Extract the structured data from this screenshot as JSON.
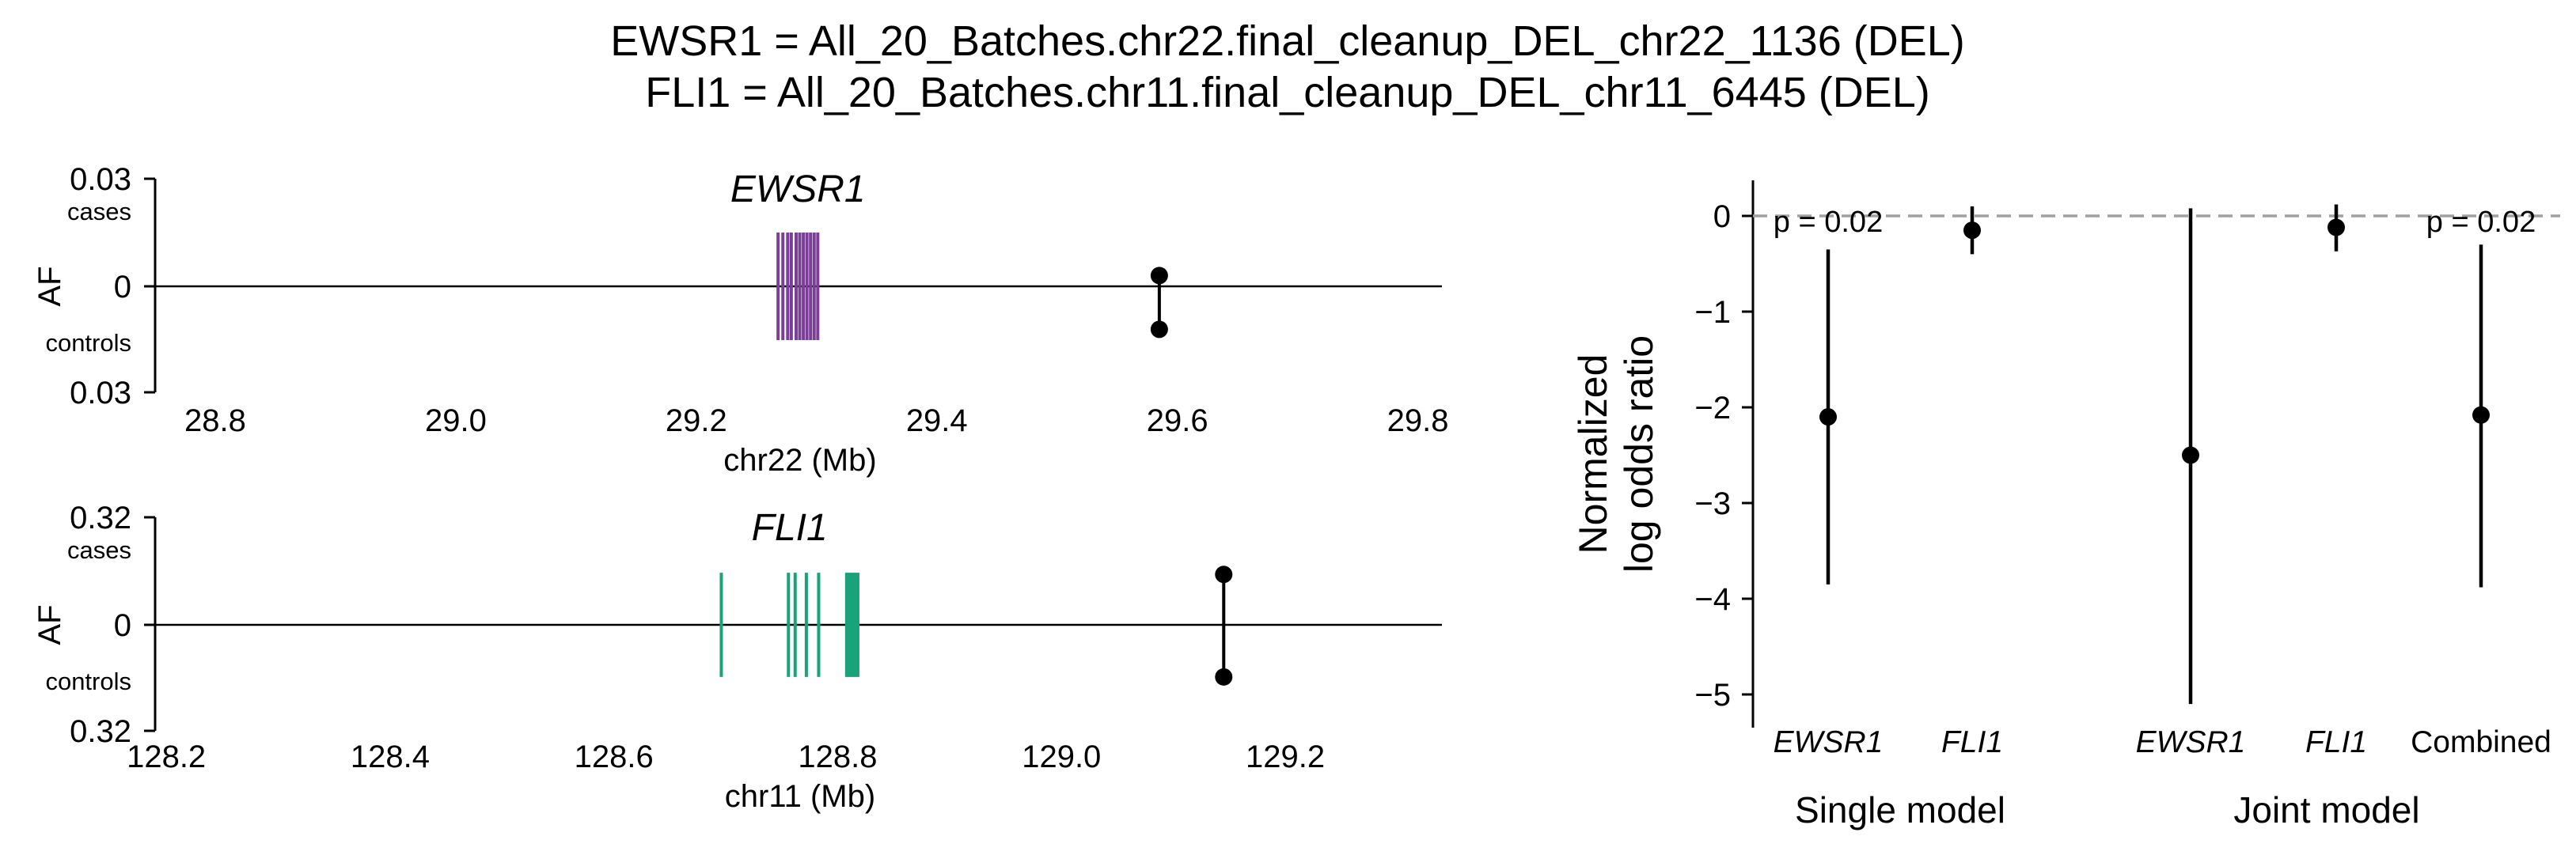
{
  "title": {
    "line1": "EWSR1 = All_20_Batches.chr22.final_cleanup_DEL_chr22_1136 (DEL)",
    "line2": "FLI1 = All_20_Batches.chr11.final_cleanup_DEL_chr11_6445 (DEL)"
  },
  "colors": {
    "ewsr1_exons": "#7b3f98",
    "fli1_exons": "#1aa37a",
    "points": "#000000",
    "zero_line": "#a0a0a0"
  },
  "chart_data": [
    {
      "id": "ewsr1_panel",
      "type": "scatter",
      "gene": "EWSR1",
      "xlabel": "chr22 (Mb)",
      "ylabel": "AF",
      "xlim": [
        28.75,
        29.82
      ],
      "ylim": [
        -0.03,
        0.03
      ],
      "x_ticks": [
        28.8,
        29.0,
        29.2,
        29.4,
        29.6,
        29.8
      ],
      "x_tick_labels": [
        "28.8",
        "29.0",
        "29.2",
        "29.4",
        "29.6",
        "29.8"
      ],
      "y_tick_labels": {
        "top": "0.03",
        "middle": "0",
        "bottom": "0.03"
      },
      "upper_label": "cases",
      "lower_label": "controls",
      "exons_mb": [
        29.268,
        29.272,
        29.276,
        29.279,
        29.283,
        29.286,
        29.289,
        29.292,
        29.295,
        29.298,
        29.301
      ],
      "exon_half_height_af": 0.015,
      "variant": {
        "x": 29.585,
        "case_af": 0.003,
        "control_af": -0.012
      }
    },
    {
      "id": "fli1_panel",
      "type": "scatter",
      "gene": "FLI1",
      "xlabel": "chr11 (Mb)",
      "ylabel": "AF",
      "xlim": [
        128.19,
        129.34
      ],
      "ylim": [
        -0.32,
        0.32
      ],
      "x_ticks": [
        128.2,
        128.4,
        128.6,
        128.8,
        129.0,
        129.2
      ],
      "x_tick_labels": [
        "128.2",
        "128.4",
        "128.6",
        "128.8",
        "129.0",
        "129.2"
      ],
      "y_tick_labels": {
        "top": "0.32",
        "middle": "0",
        "bottom": "0.32"
      },
      "upper_label": "cases",
      "lower_label": "controls",
      "exons_mb": [
        128.696,
        128.756,
        128.762,
        128.772,
        128.783,
        128.808,
        128.81,
        128.812,
        128.814,
        128.816,
        128.818
      ],
      "exon_half_height_af": 0.155,
      "variant": {
        "x": 129.145,
        "case_af": 0.15,
        "control_af": -0.155
      }
    },
    {
      "id": "log_odds_panel",
      "type": "scatter",
      "ylabel_line1": "Normalized",
      "ylabel_line2": "log odds ratio",
      "ylim": [
        -5.3,
        0.35
      ],
      "y_ticks": [
        0,
        -1,
        -2,
        -3,
        -4,
        -5
      ],
      "y_tick_labels": [
        "0",
        "−1",
        "−2",
        "−3",
        "−4",
        "−5"
      ],
      "categories": [
        "EWSR1",
        "FLI1",
        "EWSR1",
        "FLI1",
        "Combined"
      ],
      "category_italic": [
        true,
        true,
        true,
        true,
        false
      ],
      "group_labels": [
        "Single model",
        "Joint model"
      ],
      "points": [
        {
          "category": "EWSR1",
          "group": "Single model",
          "estimate": -2.1,
          "ci_low": -3.85,
          "ci_high": -0.35,
          "pvalue": "p = 0.02"
        },
        {
          "category": "FLI1",
          "group": "Single model",
          "estimate": -0.15,
          "ci_low": -0.4,
          "ci_high": 0.1,
          "pvalue": ""
        },
        {
          "category": "EWSR1",
          "group": "Joint model",
          "estimate": -2.5,
          "ci_low": -5.1,
          "ci_high": 0.08,
          "pvalue": ""
        },
        {
          "category": "FLI1",
          "group": "Joint model",
          "estimate": -0.12,
          "ci_low": -0.37,
          "ci_high": 0.12,
          "pvalue": ""
        },
        {
          "category": "Combined",
          "group": "Joint model",
          "estimate": -2.08,
          "ci_low": -3.88,
          "ci_high": -0.3,
          "pvalue": "p = 0.02"
        }
      ],
      "reference_line": 0
    }
  ]
}
